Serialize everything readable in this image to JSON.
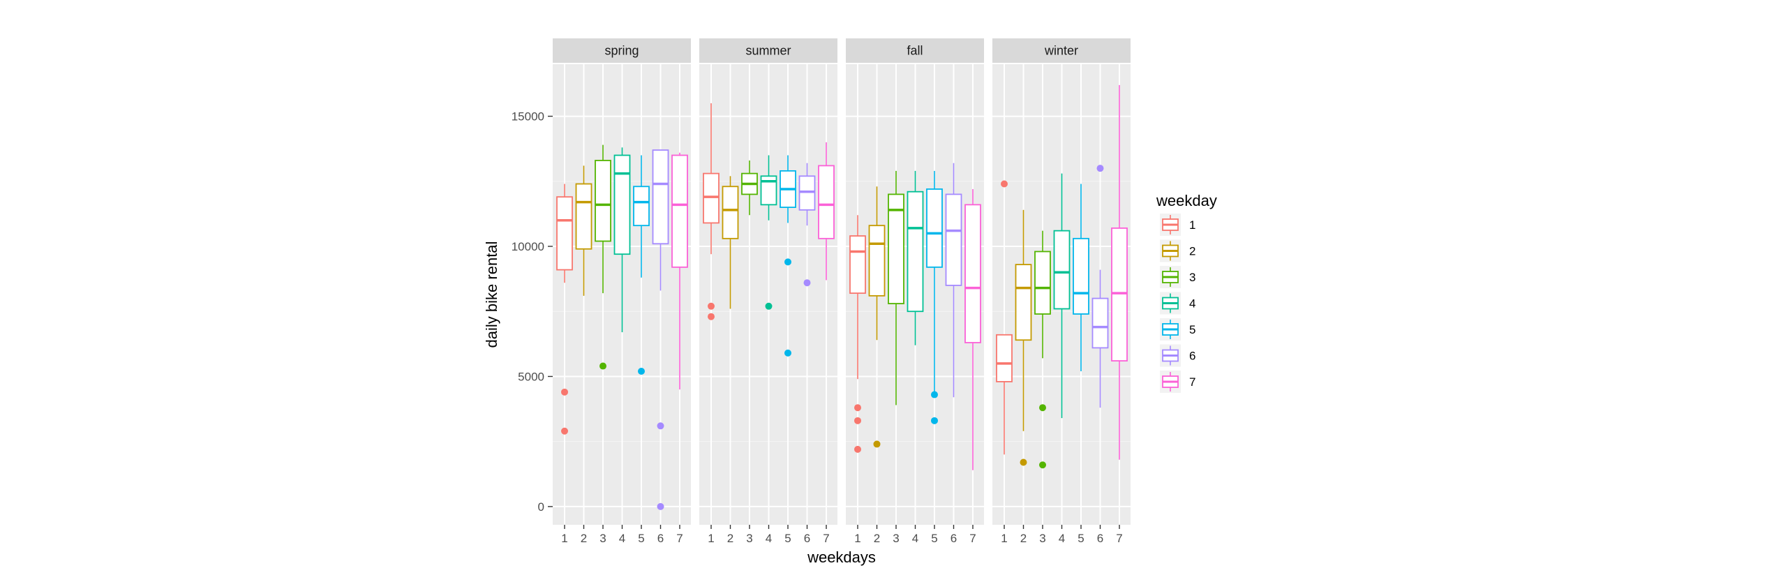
{
  "chart_data": {
    "type": "boxplot",
    "facet_by": "season",
    "facets": [
      {
        "label": "spring",
        "boxes": [
          {
            "weekday": 1,
            "min": 8600,
            "q1": 9100,
            "median": 11000,
            "q3": 11900,
            "max": 12400,
            "outliers": [
              4400,
              2900
            ]
          },
          {
            "weekday": 2,
            "min": 8100,
            "q1": 9900,
            "median": 11700,
            "q3": 12400,
            "max": 13100,
            "outliers": []
          },
          {
            "weekday": 3,
            "min": 8200,
            "q1": 10200,
            "median": 11600,
            "q3": 13300,
            "max": 13900,
            "outliers": [
              5400
            ]
          },
          {
            "weekday": 4,
            "min": 6700,
            "q1": 9700,
            "median": 12800,
            "q3": 13500,
            "max": 13800,
            "outliers": []
          },
          {
            "weekday": 5,
            "min": 8800,
            "q1": 10800,
            "median": 11700,
            "q3": 12300,
            "max": 13500,
            "outliers": [
              5200
            ]
          },
          {
            "weekday": 6,
            "min": 8300,
            "q1": 10100,
            "median": 12400,
            "q3": 13700,
            "max": 13700,
            "outliers": [
              3100,
              0
            ]
          },
          {
            "weekday": 7,
            "min": 4500,
            "q1": 9200,
            "median": 11600,
            "q3": 13500,
            "max": 13600,
            "outliers": []
          }
        ]
      },
      {
        "label": "summer",
        "boxes": [
          {
            "weekday": 1,
            "min": 9700,
            "q1": 10900,
            "median": 11900,
            "q3": 12800,
            "max": 15500,
            "outliers": [
              7700,
              7300
            ]
          },
          {
            "weekday": 2,
            "min": 7600,
            "q1": 10300,
            "median": 11400,
            "q3": 12300,
            "max": 12700,
            "outliers": []
          },
          {
            "weekday": 3,
            "min": 11200,
            "q1": 12000,
            "median": 12400,
            "q3": 12800,
            "max": 13300,
            "outliers": []
          },
          {
            "weekday": 4,
            "min": 11000,
            "q1": 11600,
            "median": 12500,
            "q3": 12700,
            "max": 13500,
            "outliers": [
              7700
            ]
          },
          {
            "weekday": 5,
            "min": 10900,
            "q1": 11500,
            "median": 12200,
            "q3": 12900,
            "max": 13500,
            "outliers": [
              9400,
              5900
            ]
          },
          {
            "weekday": 6,
            "min": 10800,
            "q1": 11400,
            "median": 12100,
            "q3": 12700,
            "max": 13200,
            "outliers": [
              8600
            ]
          },
          {
            "weekday": 7,
            "min": 8700,
            "q1": 10300,
            "median": 11600,
            "q3": 13100,
            "max": 14000,
            "outliers": []
          }
        ]
      },
      {
        "label": "fall",
        "boxes": [
          {
            "weekday": 1,
            "min": 4900,
            "q1": 8200,
            "median": 9800,
            "q3": 10400,
            "max": 11200,
            "outliers": [
              3800,
              3300,
              2200
            ]
          },
          {
            "weekday": 2,
            "min": 6400,
            "q1": 8100,
            "median": 10100,
            "q3": 10800,
            "max": 12300,
            "outliers": [
              2400
            ]
          },
          {
            "weekday": 3,
            "min": 3900,
            "q1": 7800,
            "median": 11400,
            "q3": 12000,
            "max": 12900,
            "outliers": []
          },
          {
            "weekday": 4,
            "min": 6200,
            "q1": 7500,
            "median": 10700,
            "q3": 12100,
            "max": 12900,
            "outliers": []
          },
          {
            "weekday": 5,
            "min": 4400,
            "q1": 9200,
            "median": 10500,
            "q3": 12200,
            "max": 12900,
            "outliers": [
              4300,
              3300
            ]
          },
          {
            "weekday": 6,
            "min": 4200,
            "q1": 8500,
            "median": 10600,
            "q3": 12000,
            "max": 13200,
            "outliers": []
          },
          {
            "weekday": 7,
            "min": 1400,
            "q1": 6300,
            "median": 8400,
            "q3": 11600,
            "max": 12200,
            "outliers": []
          }
        ]
      },
      {
        "label": "winter",
        "boxes": [
          {
            "weekday": 1,
            "min": 2000,
            "q1": 4800,
            "median": 5500,
            "q3": 6600,
            "max": 6600,
            "outliers": [
              12400
            ]
          },
          {
            "weekday": 2,
            "min": 2900,
            "q1": 6400,
            "median": 8400,
            "q3": 9300,
            "max": 11400,
            "outliers": [
              1700
            ]
          },
          {
            "weekday": 3,
            "min": 5700,
            "q1": 7400,
            "median": 8400,
            "q3": 9800,
            "max": 10600,
            "outliers": [
              3800,
              1600
            ]
          },
          {
            "weekday": 4,
            "min": 3400,
            "q1": 7600,
            "median": 9000,
            "q3": 10600,
            "max": 12800,
            "outliers": []
          },
          {
            "weekday": 5,
            "min": 5200,
            "q1": 7400,
            "median": 8200,
            "q3": 10300,
            "max": 12400,
            "outliers": []
          },
          {
            "weekday": 6,
            "min": 3800,
            "q1": 6100,
            "median": 6900,
            "q3": 8000,
            "max": 9100,
            "outliers": [
              13000
            ]
          },
          {
            "weekday": 7,
            "min": 1800,
            "q1": 5600,
            "median": 8200,
            "q3": 10700,
            "max": 16200,
            "outliers": []
          }
        ]
      }
    ],
    "xlabel": "weekdays",
    "ylabel": "daily bike rental",
    "xticks": [
      "1",
      "2",
      "3",
      "4",
      "5",
      "6",
      "7"
    ],
    "yticks": [
      0,
      5000,
      10000,
      15000
    ],
    "ylim": [
      -700,
      17000
    ],
    "legend": {
      "title": "weekday",
      "entries": [
        "1",
        "2",
        "3",
        "4",
        "5",
        "6",
        "7"
      ],
      "position": "right"
    },
    "colors": [
      "#F8766D",
      "#C49A00",
      "#53B400",
      "#00C094",
      "#00B6EB",
      "#A58AFF",
      "#FB61D7"
    ],
    "panel_background": "#EBEBEB",
    "strip_background": "#D9D9D9",
    "grid": true
  }
}
